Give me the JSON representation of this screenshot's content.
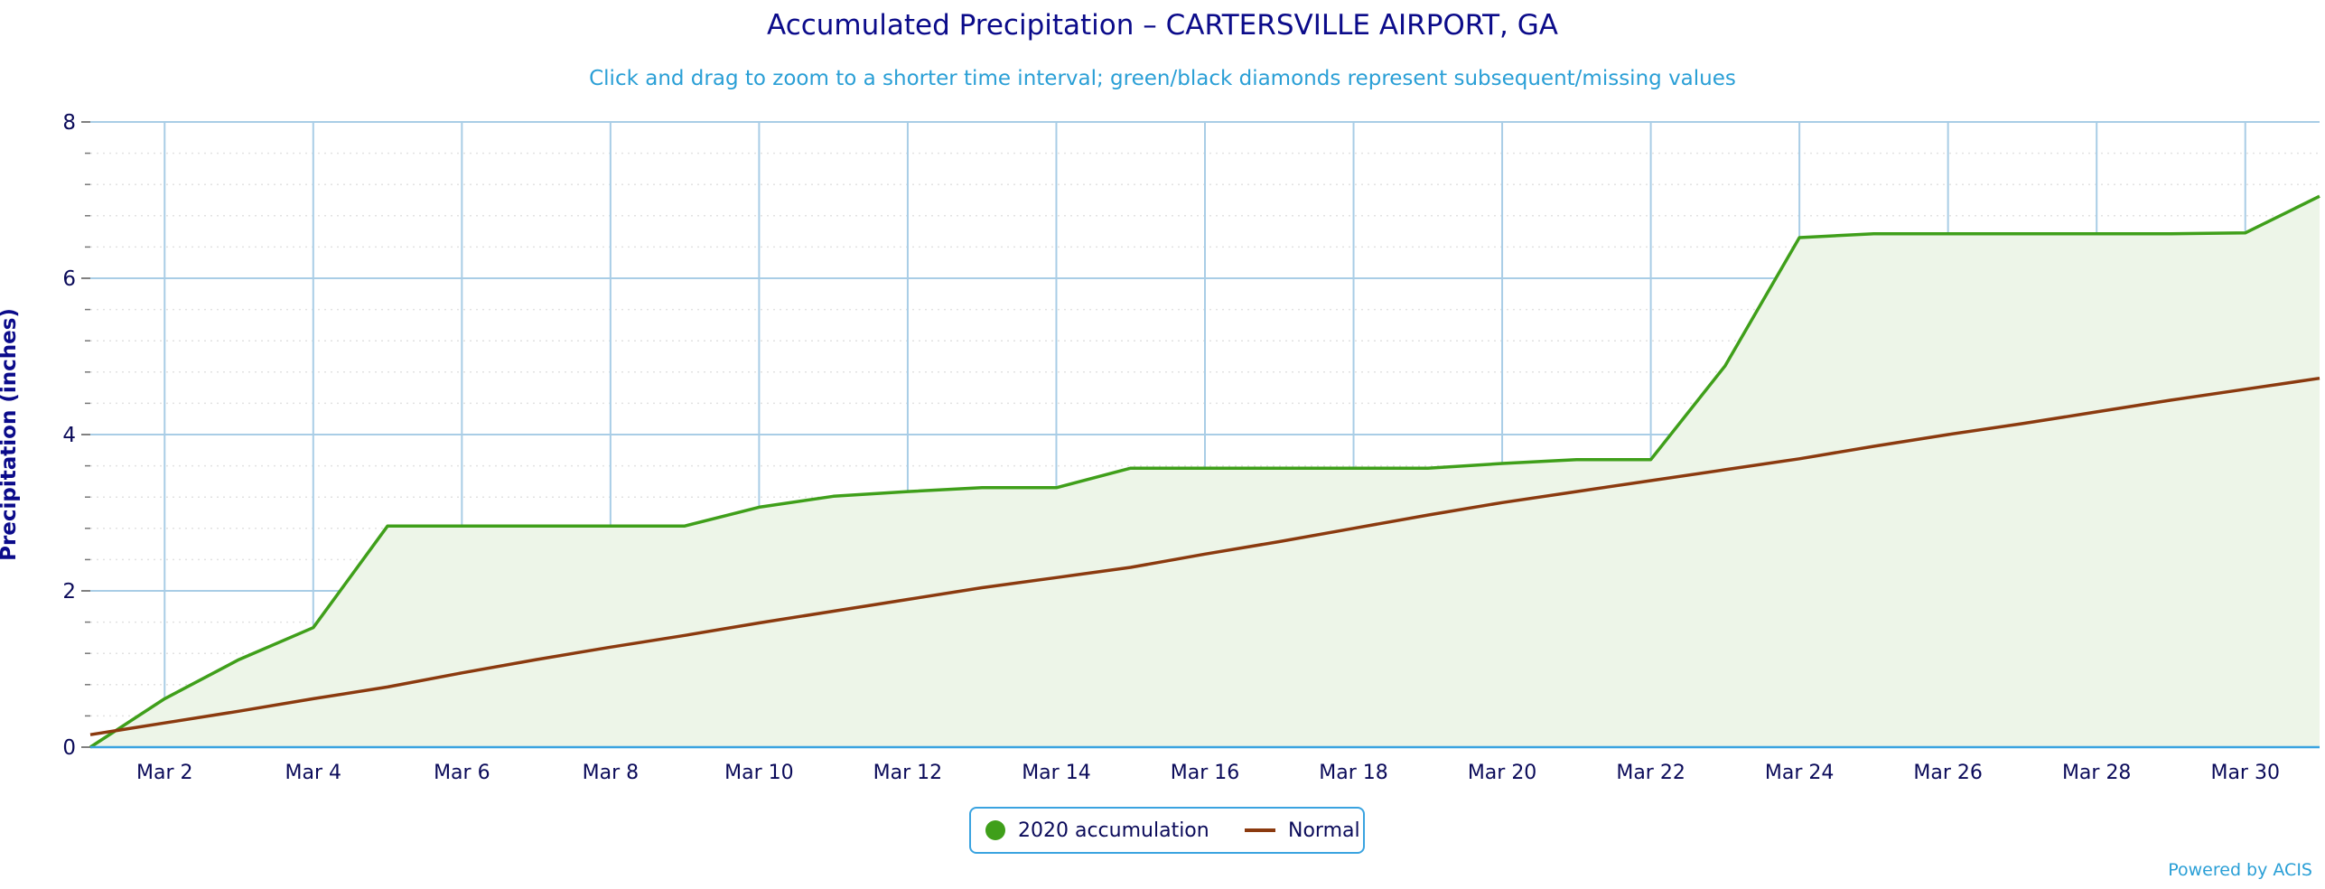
{
  "chart_data": {
    "type": "area",
    "title": "Accumulated Precipitation – CARTERSVILLE AIRPORT, GA",
    "subtitle": "Click and drag to zoom to a shorter time interval; green/black diamonds represent subsequent/missing values",
    "xlabel": "",
    "ylabel": "Precipitation (inches)",
    "ylim": [
      0,
      8
    ],
    "y_ticks": [
      0,
      2,
      4,
      6,
      8
    ],
    "x_ticks": [
      "Mar 2",
      "Mar 4",
      "Mar 6",
      "Mar 8",
      "Mar 10",
      "Mar 12",
      "Mar 14",
      "Mar 16",
      "Mar 18",
      "Mar 20",
      "Mar 22",
      "Mar 24",
      "Mar 26",
      "Mar 28",
      "Mar 30"
    ],
    "x_tick_days": [
      2,
      4,
      6,
      8,
      10,
      12,
      14,
      16,
      18,
      20,
      22,
      24,
      26,
      28,
      30
    ],
    "xlim_days": [
      1,
      31
    ],
    "grid": true,
    "legend_position": "bottom-center",
    "series": [
      {
        "name": "2020 accumulation",
        "color": "#3f9f1a",
        "fill": "#edf5e8",
        "marker": "circle",
        "x": [
          1,
          2,
          3,
          4,
          5,
          6,
          7,
          8,
          9,
          10,
          11,
          12,
          13,
          14,
          15,
          16,
          17,
          18,
          19,
          20,
          21,
          22,
          23,
          24,
          25,
          26,
          27,
          28,
          29,
          30,
          31
        ],
        "values": [
          0,
          0.62,
          1.12,
          1.53,
          2.83,
          2.83,
          2.83,
          2.83,
          2.83,
          3.07,
          3.21,
          3.27,
          3.32,
          3.32,
          3.57,
          3.57,
          3.57,
          3.57,
          3.57,
          3.63,
          3.68,
          3.68,
          4.88,
          6.52,
          6.57,
          6.57,
          6.57,
          6.57,
          6.57,
          6.58,
          7.05
        ]
      },
      {
        "name": "Normal",
        "color": "#8b3a0f",
        "marker": "line",
        "x": [
          1,
          2,
          3,
          4,
          5,
          6,
          7,
          8,
          9,
          10,
          11,
          12,
          13,
          14,
          15,
          16,
          17,
          18,
          19,
          20,
          21,
          22,
          23,
          24,
          25,
          26,
          27,
          28,
          29,
          30,
          31
        ],
        "values": [
          0.16,
          0.31,
          0.46,
          0.62,
          0.77,
          0.95,
          1.12,
          1.28,
          1.43,
          1.59,
          1.74,
          1.89,
          2.04,
          2.17,
          2.3,
          2.47,
          2.63,
          2.8,
          2.97,
          3.13,
          3.27,
          3.41,
          3.55,
          3.69,
          3.85,
          4.0,
          4.14,
          4.29,
          4.44,
          4.58,
          4.72
        ]
      }
    ]
  },
  "footer": {
    "credits": "Powered by ACIS"
  }
}
